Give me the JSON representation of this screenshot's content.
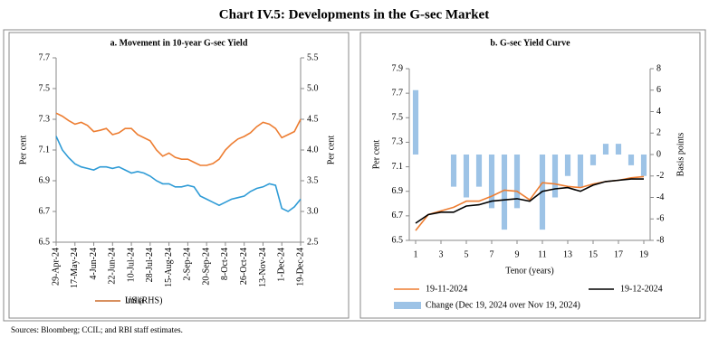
{
  "title": "Chart IV.5: Developments in the G-sec Market",
  "source": "Sources: Bloomberg; CCIL; and RBI staff estimates.",
  "chart_data": [
    {
      "type": "line",
      "title": "a. Movement in 10-year G-sec Yield",
      "categories": [
        "29-Apr-24",
        null,
        null,
        "17-May-24",
        null,
        null,
        "4-Jun-24",
        null,
        null,
        "22-Jun-24",
        null,
        null,
        "10-Jul-24",
        null,
        null,
        "28-Jul-24",
        null,
        null,
        "15-Aug-24",
        null,
        null,
        "2-Sep-24",
        null,
        null,
        "20-Sep-24",
        null,
        null,
        "8-Oct-24",
        null,
        null,
        "26-Oct-24",
        null,
        null,
        "13-Nov-24",
        null,
        null,
        "1-Dec-24",
        null,
        null,
        "19-Dec-24"
      ],
      "y_label": "Per cent",
      "y2_label": "Per cent",
      "ylim": [
        6.5,
        7.7
      ],
      "yticks": [
        6.5,
        6.7,
        6.9,
        7.1,
        7.3,
        7.5,
        7.7
      ],
      "y2lim": [
        2.5,
        5.5
      ],
      "y2ticks": [
        2.5,
        {
          "value": 3,
          "label": "3.0"
        },
        3.5,
        {
          "value": 4,
          "label": "4.0"
        },
        4.5,
        {
          "value": 5,
          "label": "5.0"
        },
        5.5
      ],
      "legend": "bottom",
      "series": [
        {
          "name": "India",
          "color": "#2e9bd6",
          "values": [
            7.19,
            7.1,
            7.05,
            7.01,
            6.99,
            6.98,
            6.97,
            6.99,
            6.99,
            6.98,
            6.99,
            6.97,
            6.95,
            6.96,
            6.95,
            6.93,
            6.9,
            6.88,
            6.88,
            6.86,
            6.86,
            6.87,
            6.86,
            6.8,
            6.78,
            6.76,
            6.74,
            6.76,
            6.78,
            6.79,
            6.8,
            6.83,
            6.85,
            6.86,
            6.88,
            6.87,
            6.72,
            6.7,
            6.73,
            6.78
          ]
        },
        {
          "name": "US (RHS)",
          "color": "#ed7d31",
          "axis": "y2",
          "values": [
            4.6,
            4.55,
            4.48,
            4.42,
            4.45,
            4.4,
            4.3,
            4.32,
            4.35,
            4.25,
            4.28,
            4.35,
            4.35,
            4.25,
            4.2,
            4.15,
            4.0,
            3.9,
            3.95,
            3.88,
            3.85,
            3.85,
            3.8,
            3.75,
            3.75,
            3.78,
            3.85,
            4.0,
            4.1,
            4.18,
            4.22,
            4.28,
            4.38,
            4.45,
            4.42,
            4.35,
            4.2,
            4.25,
            4.3,
            4.5
          ]
        }
      ]
    },
    {
      "type": "line",
      "title": "b. G-sec Yield Curve",
      "categories": [
        "1",
        null,
        "3",
        null,
        "5",
        null,
        "7",
        null,
        "9",
        null,
        "11",
        null,
        "13",
        null,
        "15",
        null,
        "17",
        null,
        "19"
      ],
      "x_label": "Tenor (years)",
      "y_label": "Per cent",
      "y2_label": "Basis points",
      "ylim": [
        6.5,
        7.9
      ],
      "yticks": [
        6.5,
        6.7,
        6.9,
        7.1,
        7.3,
        7.5,
        7.7,
        7.9
      ],
      "y2lim": [
        -8,
        8
      ],
      "y2ticks": [
        -8,
        -6,
        -4,
        -2,
        0,
        2,
        4,
        6,
        8
      ],
      "legend": "bottom",
      "series": [
        {
          "name": "Change (Dec 19, 2024 over Nov 19, 2024)",
          "type": "bar",
          "color": "#9dc3e6",
          "axis": "y2",
          "values": [
            6,
            0,
            0,
            -3,
            -4,
            -3,
            -5,
            -7,
            -5,
            0,
            -7,
            -4,
            -2,
            -3,
            -1,
            1,
            1,
            -1,
            -2
          ]
        },
        {
          "name": "19-11-2024",
          "color": "#ed7d31",
          "values": [
            6.58,
            6.71,
            6.74,
            6.77,
            6.82,
            6.82,
            6.86,
            6.91,
            6.9,
            6.83,
            6.97,
            6.96,
            6.94,
            6.93,
            6.96,
            6.98,
            6.99,
            7.01,
            7.02
          ]
        },
        {
          "name": "19-12-2024",
          "color": "#000000",
          "values": [
            6.64,
            6.71,
            6.73,
            6.73,
            6.78,
            6.79,
            6.82,
            6.83,
            6.84,
            6.82,
            6.9,
            6.92,
            6.93,
            6.9,
            6.95,
            6.98,
            6.99,
            7.0,
            7.0
          ]
        }
      ]
    }
  ]
}
